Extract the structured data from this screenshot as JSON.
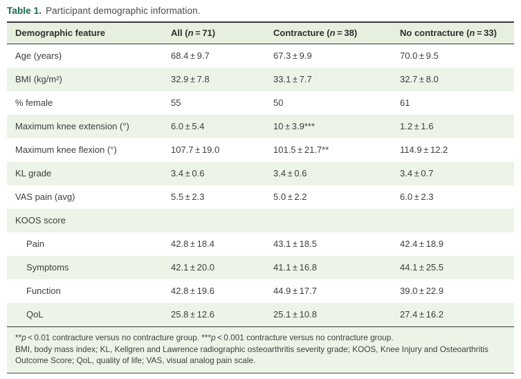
{
  "colors": {
    "accent_green": "#14684e",
    "header_bg": "#e7f0de",
    "row_stripe_bg": "#ebf4e6",
    "footnote_bg": "#ebf4e6",
    "rule_dark": "#3a3a3a",
    "body_text": "#3d3d3d"
  },
  "caption": {
    "label": "Table 1.",
    "text": "Participant demographic information."
  },
  "table": {
    "columns": [
      {
        "label": "Demographic feature"
      },
      {
        "prefix": "All (",
        "n": "n",
        "suffix": " = 71)"
      },
      {
        "prefix": "Contracture (",
        "n": "n",
        "suffix": " = 38)"
      },
      {
        "prefix": "No contracture (",
        "n": "n",
        "suffix": " = 33)"
      }
    ],
    "rows": [
      {
        "label": "Age (years)",
        "all": "68.4 ± 9.7",
        "contracture": "67.3 ± 9.9",
        "no_contracture": "70.0 ± 9.5"
      },
      {
        "label": "BMI (kg/m²)",
        "all": "32.9 ± 7.8",
        "contracture": "33.1 ± 7.7",
        "no_contracture": "32.7 ± 8.0"
      },
      {
        "label": "% female",
        "all": "55",
        "contracture": "50",
        "no_contracture": "61"
      },
      {
        "label": "Maximum knee extension (°)",
        "all": "6.0 ± 5.4",
        "contracture": "10 ± 3.9***",
        "no_contracture": "1.2 ± 1.6"
      },
      {
        "label": "Maximum knee flexion (°)",
        "all": "107.7 ± 19.0",
        "contracture": "101.5 ± 21.7**",
        "no_contracture": "114.9 ± 12.2"
      },
      {
        "label": "KL grade",
        "all": "3.4 ± 0.6",
        "contracture": "3.4 ± 0.6",
        "no_contracture": "3.4 ± 0.7"
      },
      {
        "label": "VAS pain (avg)",
        "all": "5.5 ± 2.3",
        "contracture": "5.0 ± 2.2",
        "no_contracture": "6.0 ± 2.3"
      },
      {
        "label": "KOOS score",
        "all": "",
        "contracture": "",
        "no_contracture": ""
      },
      {
        "label": "Pain",
        "all": "42.8 ± 18.4",
        "contracture": "43.1 ± 18.5",
        "no_contracture": "42.4 ± 18.9"
      },
      {
        "label": "Symptoms",
        "all": "42.1 ± 20.0",
        "contracture": "41.1 ± 16.8",
        "no_contracture": "44.1 ± 25.5"
      },
      {
        "label": "Function",
        "all": "42.8 ± 19.6",
        "contracture": "44.9 ± 17.7",
        "no_contracture": "39.0 ± 22.9"
      },
      {
        "label": "QoL",
        "all": "25.8 ± 12.6",
        "contracture": "25.1 ± 10.8",
        "no_contracture": "27.4 ± 16.2"
      }
    ]
  },
  "footnotes": {
    "sig": {
      "a1": "**",
      "p1": "p",
      "t1": " < 0.01 contracture versus no contracture group. ",
      "a2": "***",
      "p2": "p",
      "t2": " < 0.001 contracture versus no contracture group."
    },
    "abbr": "BMI, body mass index; KL, Kellgren and Lawrence radiographic osteoarthritis severity grade; KOOS, Knee Injury and Osteoarthritis Outcome Score; QoL, quality of life; VAS, visual analog pain scale."
  }
}
